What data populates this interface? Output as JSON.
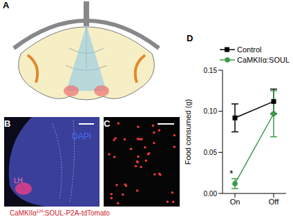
{
  "panels": {
    "a": {
      "label": "A"
    },
    "b": {
      "label": "B",
      "stain": "DAPI",
      "region": "LH"
    },
    "c": {
      "label": "C"
    },
    "d": {
      "label": "D"
    }
  },
  "caption": {
    "prefix": "CaMKIIα",
    "superscript": "LH",
    "suffix": ":SOUL-P2A-tdTomato"
  },
  "chart_data": {
    "type": "line",
    "categories": [
      "On",
      "Off"
    ],
    "y_label": "Food consumed (g)",
    "ylim": [
      0,
      0.15
    ],
    "yticks": [
      {
        "value": 0,
        "label": "0.00"
      },
      {
        "value": 0.05,
        "label": "0.05"
      },
      {
        "value": 0.1,
        "label": "0.10"
      },
      {
        "value": 0.15,
        "label": "0.15"
      }
    ],
    "legend": "top",
    "series": [
      {
        "name": "Control",
        "color": "#000000",
        "marker": "square",
        "values": [
          0.092,
          0.112
        ],
        "errors": [
          0.017,
          0.015
        ]
      },
      {
        "name": "CaMKIIα:SOUL",
        "color": "#3a9a4a",
        "marker": "circle",
        "values": [
          0.012,
          0.097
        ],
        "errors": [
          0.006,
          0.028
        ]
      }
    ],
    "annotations": [
      {
        "text": "*",
        "series": "CaMKIIα:SOUL",
        "category": "On"
      }
    ]
  }
}
